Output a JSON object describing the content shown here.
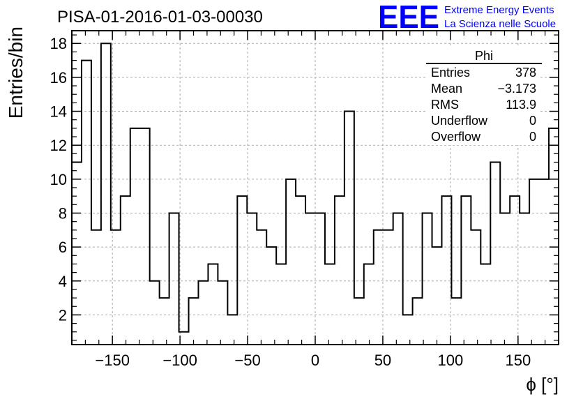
{
  "chart_data": {
    "type": "histogram",
    "title": "PISA-01-2016-01-03-00030",
    "xlabel": "ϕ [°]",
    "ylabel": "Entries/bin",
    "xlim": [
      -180,
      180
    ],
    "ylim": [
      0.25,
      18.75
    ],
    "grid": true,
    "bin_width": 7.2,
    "bin_start": -180,
    "values": [
      11,
      17,
      7,
      18,
      7,
      9,
      13,
      13,
      4,
      3,
      8,
      1,
      3,
      4,
      5,
      4,
      2,
      9,
      8,
      7,
      6,
      5,
      10,
      9,
      8,
      8,
      5,
      9,
      14,
      3,
      5,
      7,
      7,
      8,
      2,
      3,
      8,
      6,
      9,
      3,
      9,
      7,
      5,
      11,
      8,
      9,
      8,
      10,
      10,
      13
    ],
    "x_ticks": [
      -150,
      -100,
      -50,
      0,
      50,
      100,
      150
    ],
    "x_tick_labels": [
      "−150",
      "−100",
      "−50",
      "0",
      "50",
      "100",
      "150"
    ],
    "y_ticks": [
      2,
      4,
      6,
      8,
      10,
      12,
      14,
      16,
      18
    ],
    "y_tick_labels": [
      "2",
      "4",
      "6",
      "8",
      "10",
      "12",
      "14",
      "16",
      "18"
    ]
  },
  "stats_box": {
    "title": "Phi",
    "rows": [
      {
        "label": "Entries",
        "value": "378"
      },
      {
        "label": "Mean",
        "value": "−3.173"
      },
      {
        "label": "RMS",
        "value": "113.9"
      },
      {
        "label": "Underflow",
        "value": "0"
      },
      {
        "label": "Overflow",
        "value": "0"
      }
    ]
  },
  "logo": {
    "text": "EEE",
    "line1": "Extreme Energy Events",
    "line2": "La Scienza nelle Scuole",
    "color": "#0000ff"
  }
}
